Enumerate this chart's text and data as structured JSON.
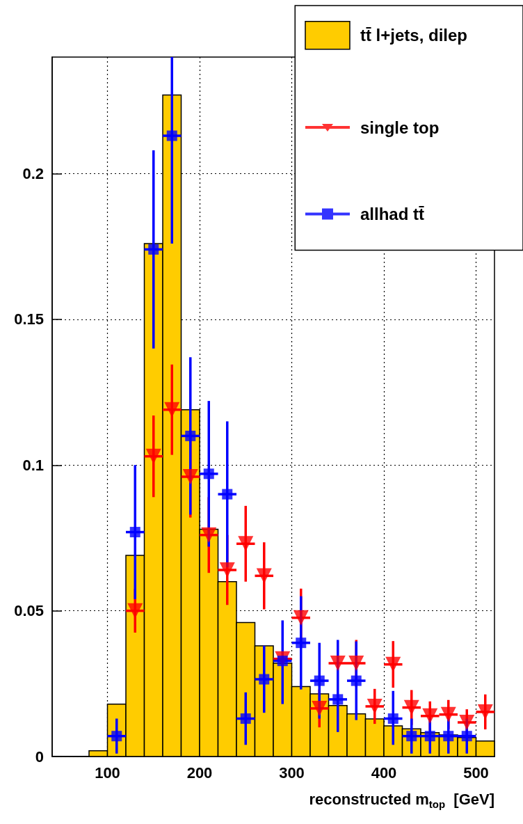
{
  "chart_data": {
    "type": "histogram",
    "xlabel": "reconstructed m$_{top}$  [GeV]",
    "bins": [
      80,
      100,
      120,
      140,
      160,
      180,
      200,
      220,
      240,
      260,
      280,
      300,
      320,
      340,
      360,
      380,
      400,
      420,
      440,
      460,
      480,
      500,
      520
    ],
    "series": [
      {
        "name": "tt̄ l+jets, dilep",
        "color": "#ffcc00",
        "values": [
          0.002,
          0.018,
          0.069,
          0.176,
          0.227,
          0.119,
          0.078,
          0.06,
          0.046,
          0.038,
          0.032,
          0.024,
          0.0215,
          0.0175,
          0.0146,
          0.0129,
          0.0105,
          0.0095,
          0.0082,
          0.0074,
          0.0065,
          0.0053
        ]
      },
      {
        "type": "scatter",
        "name": "single top",
        "color": "#ff0000",
        "marker": "triangle",
        "x": [
          130,
          150,
          170,
          190,
          210,
          230,
          250,
          270,
          290,
          310,
          330,
          350,
          370,
          390,
          410,
          430,
          450,
          470,
          490,
          510
        ],
        "values": [
          0.05,
          0.103,
          0.119,
          0.096,
          0.076,
          0.064,
          0.073,
          0.062,
          0.0335,
          0.0476,
          0.0165,
          0.032,
          0.032,
          0.0172,
          0.0316,
          0.0168,
          0.0139,
          0.0144,
          0.0117,
          0.0153
        ],
        "errors": [
          0.0075,
          0.014,
          0.0155,
          0.014,
          0.013,
          0.012,
          0.013,
          0.0115,
          null,
          0.01,
          0.0065,
          null,
          0.008,
          0.006,
          0.008,
          0.006,
          0.005,
          0.005,
          0.0045,
          0.006
        ],
        "xerrors": [
          10,
          10,
          10,
          10,
          10,
          10,
          10,
          10,
          10,
          10,
          10,
          10,
          10,
          10,
          10,
          10,
          10,
          10,
          10,
          10
        ]
      },
      {
        "type": "scatter",
        "name": "allhad tt̄",
        "color": "#0000ff",
        "marker": "square",
        "x": [
          110,
          130,
          150,
          170,
          190,
          210,
          230,
          250,
          270,
          290,
          310,
          330,
          350,
          370,
          410,
          430,
          450,
          470,
          490
        ],
        "values": [
          0.007,
          0.077,
          0.174,
          0.213,
          0.11,
          0.097,
          0.09,
          0.013,
          0.0265,
          0.0328,
          0.039,
          0.026,
          0.0196,
          0.026,
          0.013,
          0.007,
          0.007,
          0.007,
          0.007
        ],
        "errors": [
          0.006,
          0.023,
          0.034,
          [
            0.176,
            0.24
          ],
          0.027,
          0.025,
          0.025,
          0.009,
          0.0115,
          [
            0.018,
            0.0467
          ],
          [
            0.023,
            0.055
          ],
          0.013,
          [
            0.0084,
            0.04
          ],
          0.0135,
          [
            0.004,
            0.0225
          ],
          0.006,
          0.006,
          0.006,
          0.006
        ],
        "xerrors": [
          10,
          10,
          10,
          10,
          10,
          10,
          10,
          10,
          10,
          10,
          10,
          10,
          10,
          10,
          10,
          10,
          10,
          10,
          10
        ]
      }
    ],
    "xlim": [
      40,
      520
    ],
    "xticks": [
      100,
      200,
      300,
      400,
      500
    ],
    "ylim": [
      0,
      0.24
    ],
    "yticks": [
      0,
      0.05,
      0.1,
      0.15,
      0.2
    ],
    "grid": true,
    "legend": "top right"
  }
}
